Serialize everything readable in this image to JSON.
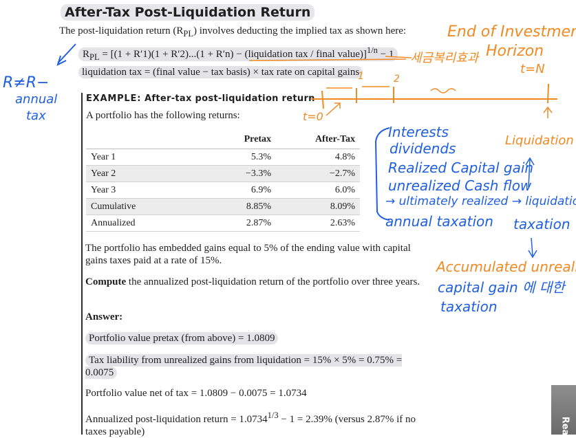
{
  "title": "After-Tax Post-Liquidation Return",
  "intro": {
    "pre": "The post-liquidation return (R",
    "sub": "PL",
    "post": ") involves deducting the implied tax as shown here:"
  },
  "formula": {
    "lhs": "R",
    "lhs_sub": "PL",
    "body": " = [(1 + R′1)(1 + R′2)...(1 + R′n) − (liquidation tax / final value)]",
    "exp": "1/n",
    "tail": " − 1"
  },
  "liquidation_tax": "liquidation tax = (final value − tax basis) × tax rate on capital gains",
  "example": {
    "label": "EXAMPLE:",
    "heading": " After-tax post-liquidation return",
    "intro": "A portfolio has the following returns:",
    "table": {
      "headers": [
        "",
        "Pretax",
        "After-Tax"
      ],
      "rows": [
        [
          "Year 1",
          "5.3%",
          "4.8%"
        ],
        [
          "Year 2",
          "−3.3%",
          "−2.7%"
        ],
        [
          "Year 3",
          "6.9%",
          "6.0%"
        ],
        [
          "Cumulative",
          "8.85%",
          "8.09%"
        ],
        [
          "Annualized",
          "2.87%",
          "2.63%"
        ]
      ]
    },
    "embedded_gains": "The portfolio has embedded gains equal to 5% of the ending value with capital gains taxes paid at a rate of 15%.",
    "compute_label": "Compute",
    "compute_text": " the annualized post-liquidation return of the portfolio over three years.",
    "answer_label": "Answer:",
    "pv_line": "Portfolio value pretax (from above) = 1.0809",
    "tax_line": "Tax liability from unrealized gains from liquidation = 15% × 5% = 0.75% = 0.0075",
    "net_line": "Portfolio value net of tax = 1.0809 − 0.0075 = 1.0734",
    "ann_pre": "Annualized post-liquidation return = 1.0734",
    "ann_exp": "1/3",
    "ann_post": " − 1 = 2.39% (versus 2.87% if no taxes payable)"
  },
  "side_tab": "Rea",
  "annotations": {
    "left_1": "R≠R−",
    "left_2": "annual",
    "left_3": "tax",
    "end_1": "End of Investment",
    "end_2": "Horizon",
    "end_3": "t=N",
    "korean": "세금복리효과",
    "t0": "t=0",
    "num_1": "1",
    "num_2": "2",
    "interests": "Interests",
    "dividends": "dividends",
    "realized": "Realized Capital gain",
    "unrealized": "unrealized Cash flow",
    "ultimately": "→ ultimately realized → liquidation",
    "annual_taxation": "annual taxation",
    "taxation_right": "taxation",
    "liquidation": "Liquidation",
    "accumulated": "Accumulated unrealized",
    "capital_gain_korean": "capital gain 에 대한",
    "taxation_bottom": "taxation",
    "colors": {
      "orange": "#f08a23",
      "blue": "#1f5fe0"
    }
  }
}
